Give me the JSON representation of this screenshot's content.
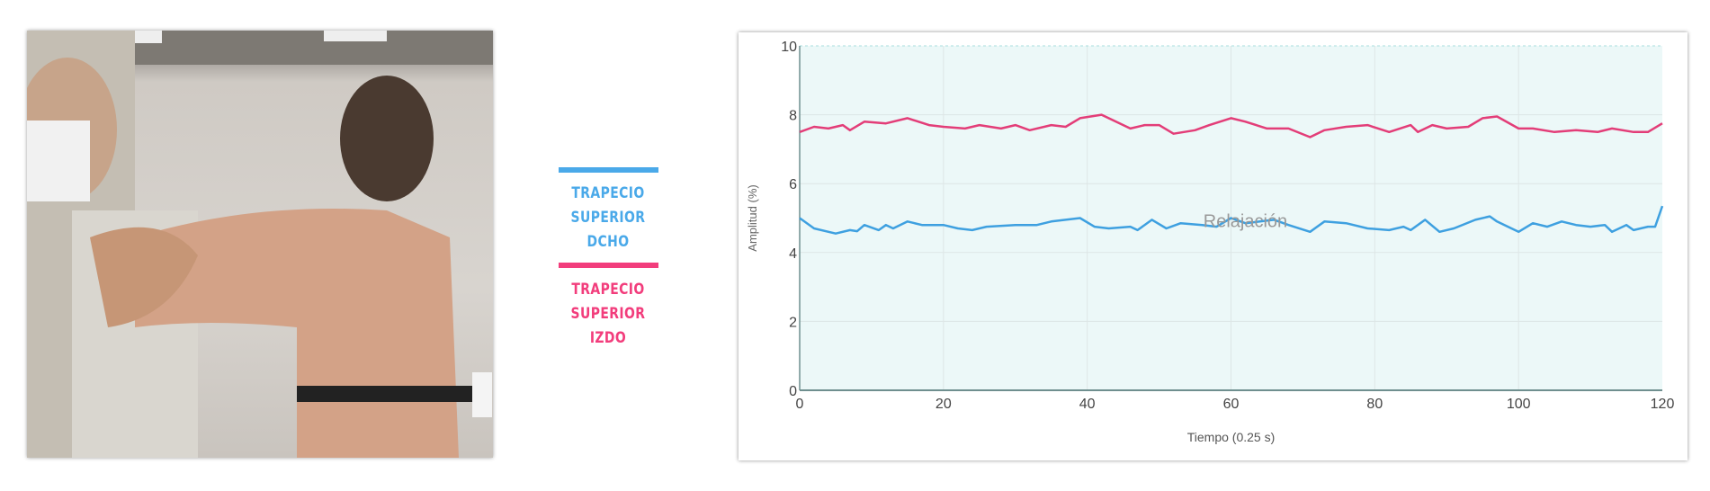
{
  "legend": [
    {
      "label_line1": "TRAPECIO SUPERIOR",
      "label_line2": "DCHO",
      "color": "#4aa9e9"
    },
    {
      "label_line1": "TRAPECIO SUPERIOR",
      "label_line2": "IZDO",
      "color": "#f23d7c"
    }
  ],
  "chart_data": {
    "type": "line",
    "xlabel": "Tiempo (0.25 s)",
    "ylabel": "Amplitud (%)",
    "xlim": [
      0,
      120
    ],
    "ylim": [
      0,
      10
    ],
    "xticks": [
      0,
      20,
      40,
      60,
      80,
      100,
      120
    ],
    "yticks": [
      0,
      2,
      4,
      6,
      8,
      10
    ],
    "grid": true,
    "background": "#ecf8f8",
    "annotation": {
      "text": "Relajación",
      "x": 62,
      "y": 4.9
    },
    "series": [
      {
        "color": "#3ea0e0",
        "points": [
          [
            0,
            5.0
          ],
          [
            2,
            4.7
          ],
          [
            5,
            4.55
          ],
          [
            7,
            4.65
          ],
          [
            8,
            4.62
          ],
          [
            9,
            4.8
          ],
          [
            11,
            4.65
          ],
          [
            12,
            4.8
          ],
          [
            13,
            4.7
          ],
          [
            15,
            4.9
          ],
          [
            17,
            4.8
          ],
          [
            20,
            4.8
          ],
          [
            22,
            4.7
          ],
          [
            24,
            4.65
          ],
          [
            26,
            4.75
          ],
          [
            30,
            4.8
          ],
          [
            33,
            4.8
          ],
          [
            35,
            4.9
          ],
          [
            37,
            4.95
          ],
          [
            39,
            5.0
          ],
          [
            41,
            4.75
          ],
          [
            43,
            4.7
          ],
          [
            46,
            4.75
          ],
          [
            47,
            4.65
          ],
          [
            49,
            4.95
          ],
          [
            51,
            4.7
          ],
          [
            53,
            4.85
          ],
          [
            56,
            4.8
          ],
          [
            58,
            4.75
          ],
          [
            60,
            5.0
          ],
          [
            62,
            4.85
          ],
          [
            64,
            4.9
          ],
          [
            66,
            4.95
          ],
          [
            68,
            4.8
          ],
          [
            71,
            4.6
          ],
          [
            73,
            4.9
          ],
          [
            76,
            4.85
          ],
          [
            79,
            4.7
          ],
          [
            82,
            4.65
          ],
          [
            84,
            4.75
          ],
          [
            85,
            4.65
          ],
          [
            87,
            4.95
          ],
          [
            89,
            4.6
          ],
          [
            91,
            4.7
          ],
          [
            94,
            4.95
          ],
          [
            96,
            5.05
          ],
          [
            97,
            4.9
          ],
          [
            100,
            4.6
          ],
          [
            102,
            4.85
          ],
          [
            104,
            4.75
          ],
          [
            106,
            4.9
          ],
          [
            108,
            4.8
          ],
          [
            110,
            4.75
          ],
          [
            112,
            4.8
          ],
          [
            113,
            4.6
          ],
          [
            115,
            4.8
          ],
          [
            116,
            4.65
          ],
          [
            118,
            4.75
          ],
          [
            119,
            4.75
          ],
          [
            120,
            5.35
          ]
        ]
      },
      {
        "color": "#e33d78",
        "points": [
          [
            0,
            7.5
          ],
          [
            2,
            7.65
          ],
          [
            4,
            7.6
          ],
          [
            6,
            7.7
          ],
          [
            7,
            7.55
          ],
          [
            9,
            7.8
          ],
          [
            12,
            7.75
          ],
          [
            15,
            7.9
          ],
          [
            18,
            7.7
          ],
          [
            20,
            7.65
          ],
          [
            23,
            7.6
          ],
          [
            25,
            7.7
          ],
          [
            28,
            7.6
          ],
          [
            30,
            7.7
          ],
          [
            32,
            7.55
          ],
          [
            35,
            7.7
          ],
          [
            37,
            7.65
          ],
          [
            39,
            7.9
          ],
          [
            42,
            8.0
          ],
          [
            44,
            7.8
          ],
          [
            46,
            7.6
          ],
          [
            48,
            7.7
          ],
          [
            50,
            7.7
          ],
          [
            52,
            7.45
          ],
          [
            55,
            7.55
          ],
          [
            57,
            7.7
          ],
          [
            60,
            7.9
          ],
          [
            62,
            7.8
          ],
          [
            65,
            7.6
          ],
          [
            68,
            7.6
          ],
          [
            71,
            7.35
          ],
          [
            73,
            7.55
          ],
          [
            76,
            7.65
          ],
          [
            79,
            7.7
          ],
          [
            82,
            7.5
          ],
          [
            85,
            7.7
          ],
          [
            86,
            7.5
          ],
          [
            88,
            7.7
          ],
          [
            90,
            7.6
          ],
          [
            93,
            7.65
          ],
          [
            95,
            7.9
          ],
          [
            97,
            7.95
          ],
          [
            100,
            7.6
          ],
          [
            102,
            7.6
          ],
          [
            105,
            7.5
          ],
          [
            108,
            7.55
          ],
          [
            111,
            7.5
          ],
          [
            113,
            7.6
          ],
          [
            116,
            7.5
          ],
          [
            118,
            7.5
          ],
          [
            120,
            7.75
          ]
        ]
      }
    ]
  }
}
